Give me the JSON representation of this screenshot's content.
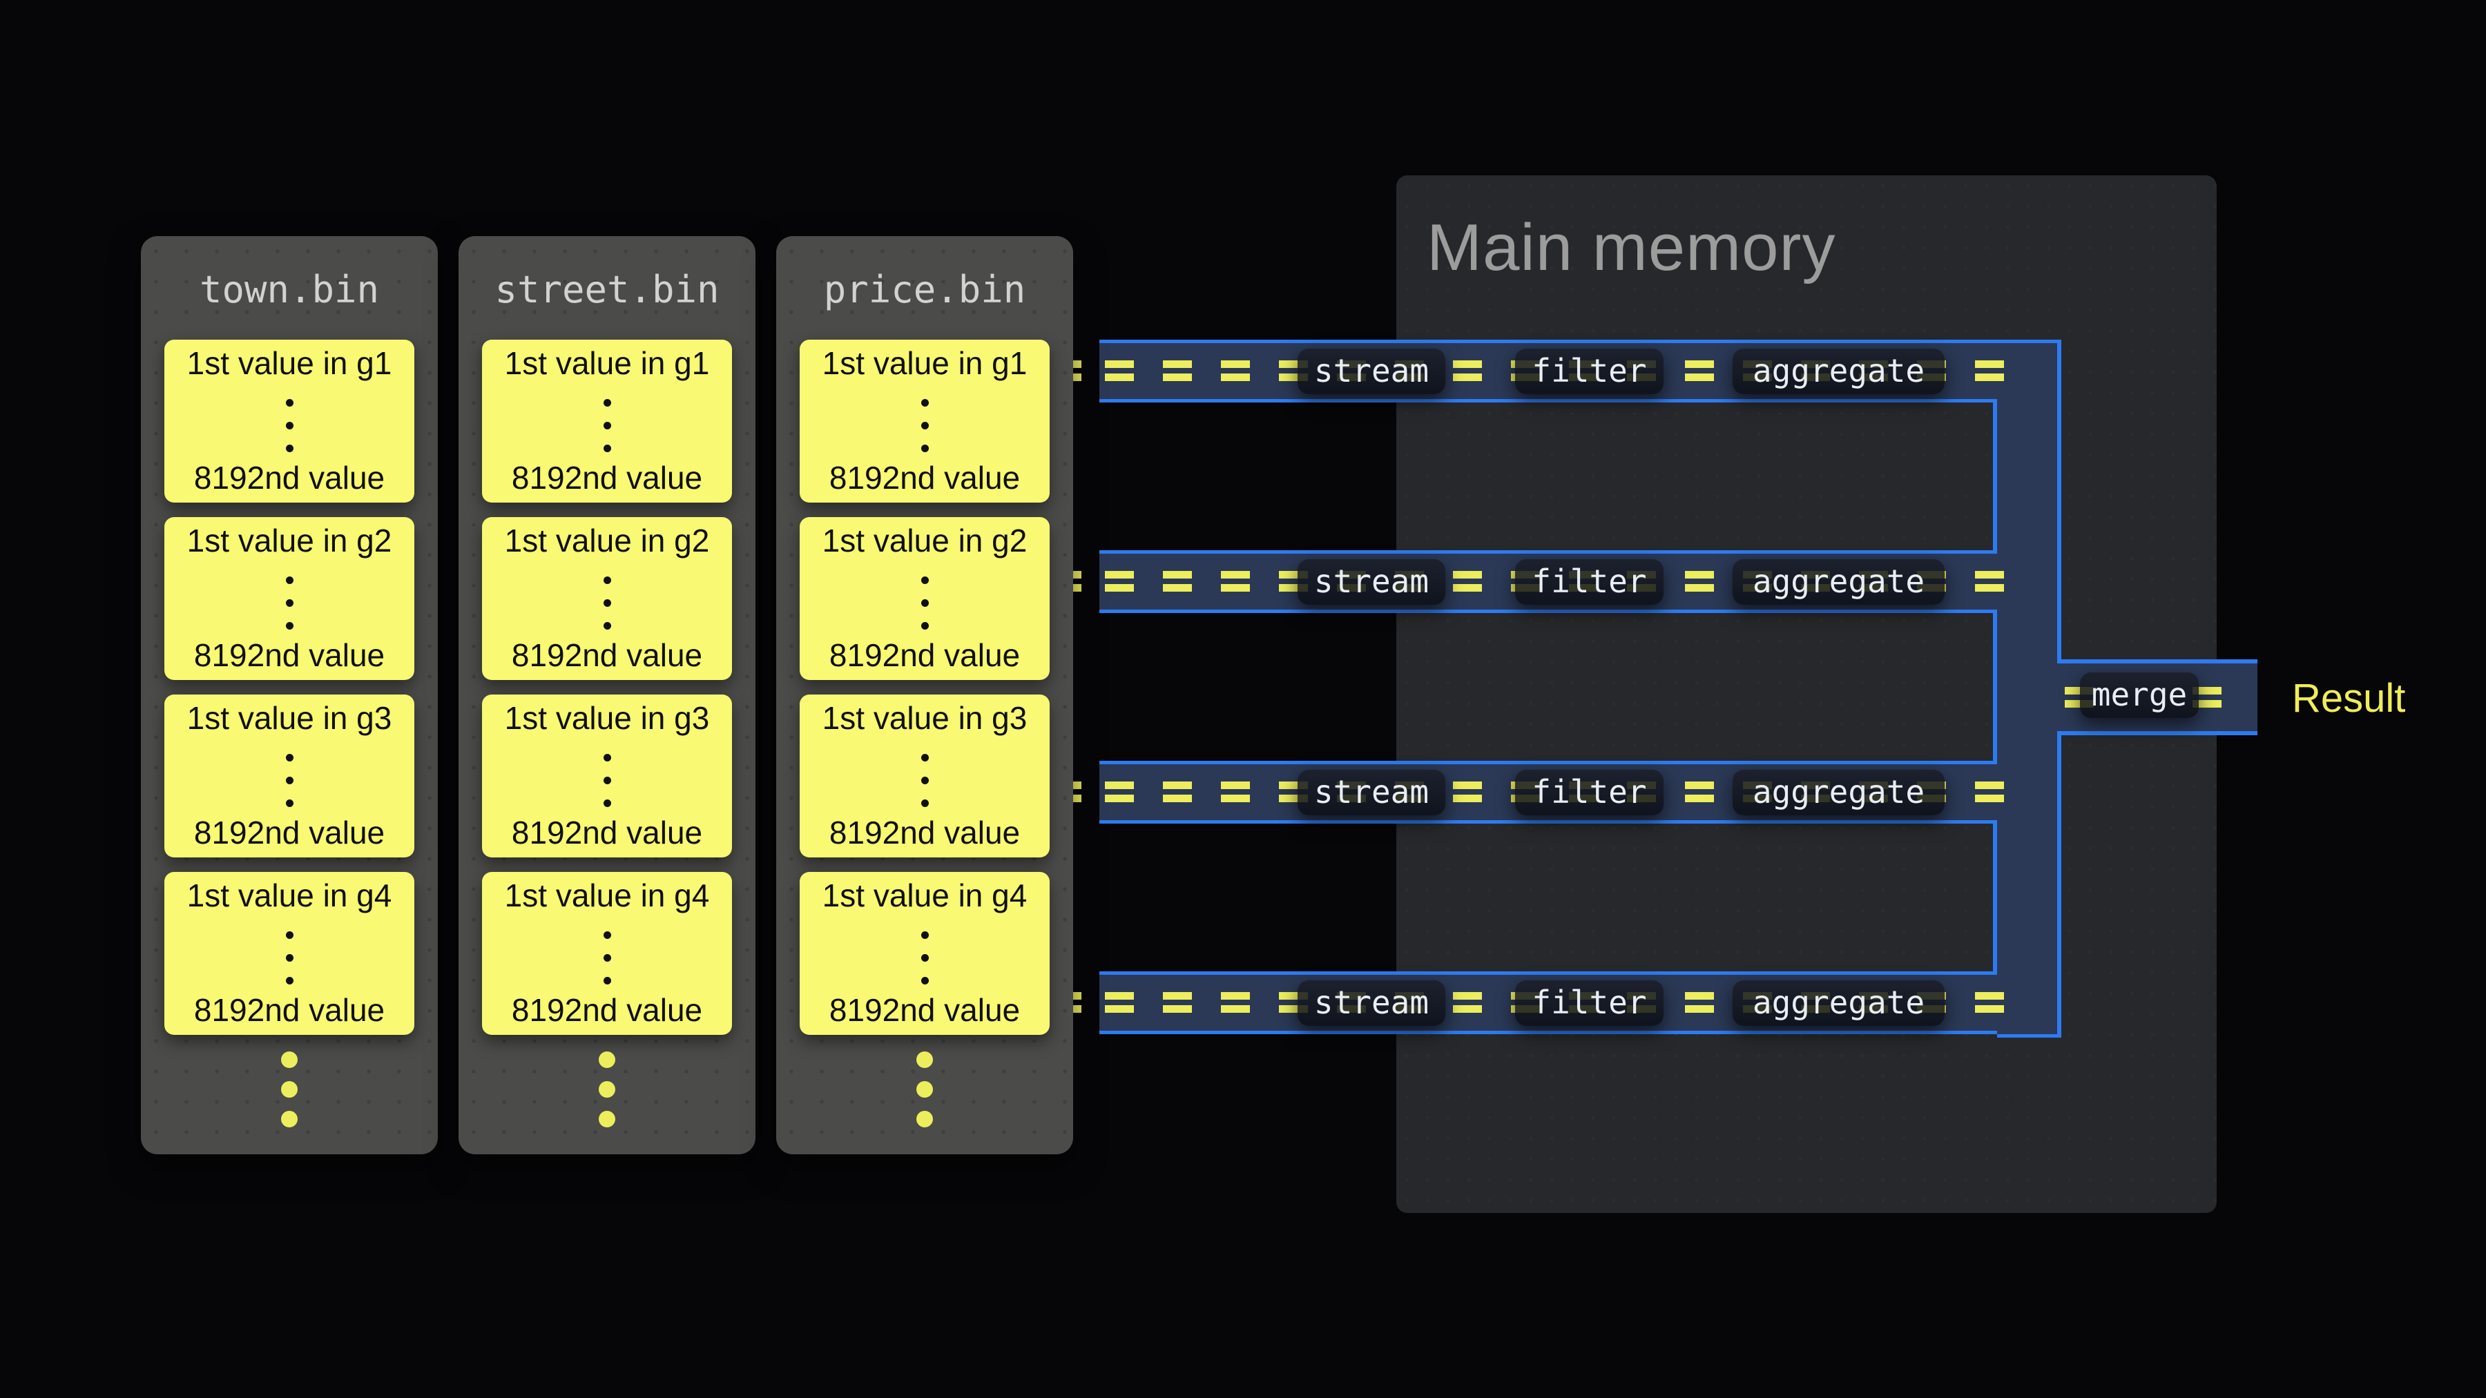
{
  "memory": {
    "title": "Main memory"
  },
  "files": {
    "columns": [
      {
        "name": "town.bin",
        "groups": [
          {
            "first_label": "1st value in g1",
            "last_label": "8192nd value"
          },
          {
            "first_label": "1st value in g2",
            "last_label": "8192nd value"
          },
          {
            "first_label": "1st value in g3",
            "last_label": "8192nd value"
          },
          {
            "first_label": "1st value in g4",
            "last_label": "8192nd value"
          }
        ]
      },
      {
        "name": "street.bin",
        "groups": [
          {
            "first_label": "1st value in g1",
            "last_label": "8192nd value"
          },
          {
            "first_label": "1st value in g2",
            "last_label": "8192nd value"
          },
          {
            "first_label": "1st value in g3",
            "last_label": "8192nd value"
          },
          {
            "first_label": "1st value in g4",
            "last_label": "8192nd value"
          }
        ]
      },
      {
        "name": "price.bin",
        "groups": [
          {
            "first_label": "1st value in g1",
            "last_label": "8192nd value"
          },
          {
            "first_label": "1st value in g2",
            "last_label": "8192nd value"
          },
          {
            "first_label": "1st value in g3",
            "last_label": "8192nd value"
          },
          {
            "first_label": "1st value in g4",
            "last_label": "8192nd value"
          }
        ]
      }
    ]
  },
  "pipelines": {
    "rows": [
      {
        "stages": [
          "stream",
          "filter",
          "aggregate"
        ]
      },
      {
        "stages": [
          "stream",
          "filter",
          "aggregate"
        ]
      },
      {
        "stages": [
          "stream",
          "filter",
          "aggregate"
        ]
      },
      {
        "stages": [
          "stream",
          "filter",
          "aggregate"
        ]
      }
    ],
    "merge_label": "merge",
    "result_label": "Result"
  },
  "icons": {
    "stream_mark": "equals-dashes-icon",
    "group_continuation": "vertical-ellipsis-icon",
    "file_continuation": "vertical-ellipsis-icon"
  },
  "colors": {
    "pipe_border": "#2d7bf2",
    "pipe_fill": "#2b3956",
    "stream_marks": "#edee5d",
    "card_fill": "#f9f973",
    "memory_bg": "#27282b",
    "file_column_bg": "#4b4b49",
    "result_text": "#f0ee58"
  }
}
